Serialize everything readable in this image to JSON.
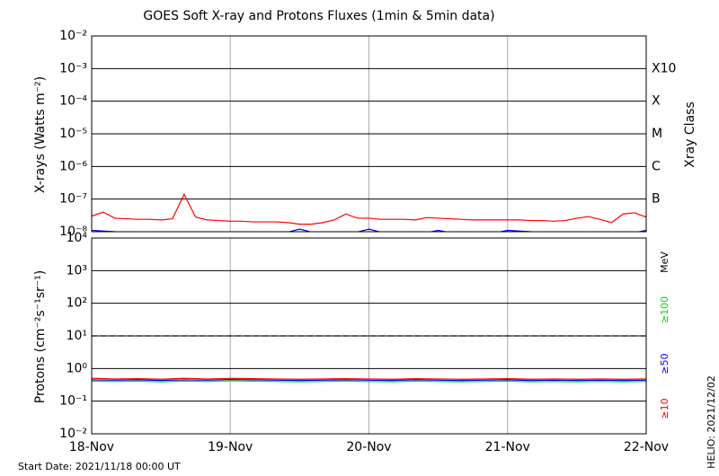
{
  "chart_data": [
    {
      "type": "line",
      "title": "GOES Soft X-ray and Protons Fluxes   (1min & 5min data)",
      "ylabel": "X-rays (Watts m⁻²)",
      "log_scale": true,
      "ylim": [
        1e-08,
        0.01
      ],
      "yticks": [
        {
          "value": 0.01,
          "label": "10⁻²"
        },
        {
          "value": 0.001,
          "label": "10⁻³"
        },
        {
          "value": 0.0001,
          "label": "10⁻⁴"
        },
        {
          "value": 1e-05,
          "label": "10⁻⁵"
        },
        {
          "value": 1e-06,
          "label": "10⁻⁶"
        },
        {
          "value": 1e-07,
          "label": "10⁻⁷"
        },
        {
          "value": 1e-08,
          "label": "10⁻⁸"
        }
      ],
      "right_axis_label": "Xray Class",
      "right_labels": [
        {
          "value": 0.001,
          "label": "X10"
        },
        {
          "value": 0.0001,
          "label": "X"
        },
        {
          "value": 1e-05,
          "label": "M"
        },
        {
          "value": 1e-06,
          "label": "C"
        },
        {
          "value": 1e-07,
          "label": "B"
        }
      ],
      "xlim": [
        0,
        96
      ],
      "xticks": [
        0,
        24,
        48,
        72,
        96
      ],
      "grid": true,
      "footer": "Start Date: 2021/11/18 00:00 UT",
      "credit": "HELIO: 2021/12/02",
      "series": [
        {
          "color": "#ff0000",
          "x": [
            0,
            2,
            4,
            6,
            8,
            10,
            12,
            14,
            16,
            18,
            20,
            22,
            24,
            26,
            28,
            30,
            32,
            34,
            36,
            38,
            40,
            42,
            44,
            46,
            48,
            50,
            52,
            54,
            56,
            58,
            60,
            62,
            64,
            66,
            68,
            70,
            72,
            74,
            76,
            78,
            80,
            82,
            84,
            86,
            88,
            90,
            92,
            94,
            96
          ],
          "values": [
            3e-08,
            4e-08,
            2.6e-08,
            2.5e-08,
            2.4e-08,
            2.4e-08,
            2.3e-08,
            2.5e-08,
            1.4e-07,
            2.8e-08,
            2.3e-08,
            2.2e-08,
            2.1e-08,
            2.1e-08,
            2e-08,
            2e-08,
            2e-08,
            1.9e-08,
            1.7e-08,
            1.7e-08,
            1.9e-08,
            2.3e-08,
            3.5e-08,
            2.6e-08,
            2.6e-08,
            2.4e-08,
            2.4e-08,
            2.4e-08,
            2.3e-08,
            2.7e-08,
            2.6e-08,
            2.5e-08,
            2.4e-08,
            2.3e-08,
            2.3e-08,
            2.3e-08,
            2.3e-08,
            2.3e-08,
            2.2e-08,
            2.2e-08,
            2.1e-08,
            2.2e-08,
            2.6e-08,
            2.9e-08,
            2.4e-08,
            1.9e-08,
            3.5e-08,
            3.8e-08,
            2.8e-08
          ]
        },
        {
          "color": "#0000ff",
          "x": [
            0,
            4,
            8,
            12,
            16,
            20,
            24,
            28,
            32,
            36,
            40,
            44,
            48,
            52,
            56,
            60,
            64,
            68,
            72,
            76,
            80,
            84,
            88,
            92,
            96
          ],
          "values": [
            1.1e-08,
            1e-08,
            8e-09,
            8e-09,
            8e-09,
            8e-09,
            8e-09,
            8e-09,
            8e-09,
            1.2e-08,
            8e-09,
            8e-09,
            1.2e-08,
            8e-09,
            8e-09,
            1.1e-08,
            8e-09,
            8e-09,
            1.1e-08,
            1e-08,
            8e-09,
            8e-09,
            8e-09,
            8e-09,
            1.1e-08
          ]
        }
      ]
    },
    {
      "type": "line",
      "ylabel": "Protons (cm⁻²s⁻¹sr⁻¹)",
      "log_scale": true,
      "ylim": [
        0.01,
        10000
      ],
      "yticks": [
        {
          "value": 10000,
          "label": "10⁴"
        },
        {
          "value": 1000,
          "label": "10³"
        },
        {
          "value": 100,
          "label": "10²"
        },
        {
          "value": 10,
          "label": "10¹"
        },
        {
          "value": 1,
          "label": "10⁰"
        },
        {
          "value": 0.1,
          "label": "10⁻¹"
        },
        {
          "value": 0.01,
          "label": "10⁻²"
        }
      ],
      "threshold": 10,
      "units_label": "MeV",
      "xlim": [
        0,
        96
      ],
      "xticks": [
        {
          "value": 0,
          "label": "18-Nov"
        },
        {
          "value": 24,
          "label": "19-Nov"
        },
        {
          "value": 48,
          "label": "20-Nov"
        },
        {
          "value": 72,
          "label": "21-Nov"
        },
        {
          "value": 96,
          "label": "22-Nov"
        }
      ],
      "grid": true,
      "series": [
        {
          "name": "≥10",
          "color": "#ff0000",
          "x": [
            0,
            4,
            8,
            12,
            16,
            20,
            24,
            28,
            32,
            36,
            40,
            44,
            48,
            52,
            56,
            60,
            64,
            68,
            72,
            76,
            80,
            84,
            88,
            92,
            96
          ],
          "values": [
            0.5,
            0.48,
            0.49,
            0.47,
            0.5,
            0.48,
            0.5,
            0.49,
            0.48,
            0.47,
            0.48,
            0.49,
            0.48,
            0.47,
            0.49,
            0.48,
            0.47,
            0.48,
            0.49,
            0.47,
            0.48,
            0.47,
            0.48,
            0.47,
            0.48
          ]
        },
        {
          "name": "≥50",
          "color": "#0000ff",
          "x": [
            0,
            4,
            8,
            12,
            16,
            20,
            24,
            28,
            32,
            36,
            40,
            44,
            48,
            52,
            56,
            60,
            64,
            68,
            72,
            76,
            80,
            84,
            88,
            92,
            96
          ],
          "values": [
            0.45,
            0.44,
            0.45,
            0.43,
            0.45,
            0.44,
            0.46,
            0.45,
            0.44,
            0.43,
            0.44,
            0.45,
            0.44,
            0.43,
            0.45,
            0.44,
            0.43,
            0.44,
            0.45,
            0.43,
            0.44,
            0.43,
            0.44,
            0.43,
            0.44
          ]
        },
        {
          "name": "≥100",
          "color": "#00dd00",
          "x": [
            0,
            4,
            8,
            12,
            16,
            20,
            24,
            28,
            32,
            36,
            40,
            44,
            48,
            52,
            56,
            60,
            64,
            68,
            72,
            76,
            80,
            84,
            88,
            92,
            96
          ],
          "values": [
            0.41,
            0.4,
            0.41,
            0.39,
            0.41,
            0.4,
            0.42,
            0.41,
            0.4,
            0.39,
            0.4,
            0.41,
            0.4,
            0.39,
            0.41,
            0.4,
            0.39,
            0.4,
            0.41,
            0.39,
            0.4,
            0.39,
            0.4,
            0.39,
            0.4
          ]
        }
      ]
    }
  ]
}
